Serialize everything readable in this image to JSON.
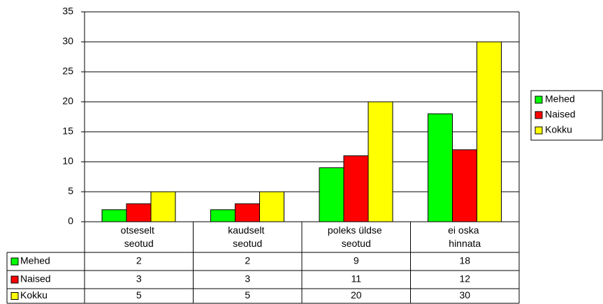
{
  "chart_data": {
    "type": "bar",
    "categories": [
      "otseselt seotud",
      "kaudselt seotud",
      "poleks üldse seotud",
      "ei oska hinnata"
    ],
    "series": [
      {
        "name": "Mehed",
        "color": "#00ff00",
        "values": [
          2,
          2,
          9,
          18
        ]
      },
      {
        "name": "Naised",
        "color": "#ff0000",
        "values": [
          3,
          3,
          11,
          12
        ]
      },
      {
        "name": "Kokku",
        "color": "#ffff00",
        "values": [
          5,
          5,
          20,
          30
        ]
      }
    ],
    "ylim": [
      0,
      35
    ],
    "yticks": [
      0,
      5,
      10,
      15,
      20,
      25,
      30,
      35
    ],
    "grid": true,
    "legend": "right",
    "data_table": true
  }
}
